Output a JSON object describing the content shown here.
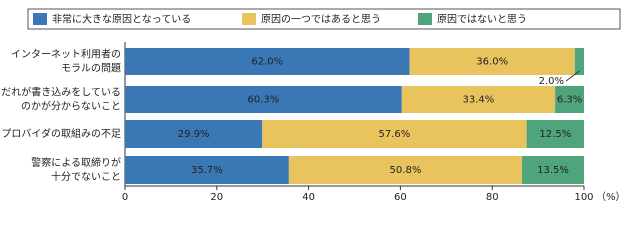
{
  "chart_data": {
    "type": "stacked_bar_horizontal",
    "categories": [
      [
        "インターネット利用者の",
        "モラルの問題"
      ],
      [
        "だれが書き込みをしている",
        "のかが分からないこと"
      ],
      [
        "プロバイダの取組みの不足"
      ],
      [
        "警察による取締りが",
        "十分でないこと"
      ]
    ],
    "series": [
      {
        "name": "非常に大きな原因となっている",
        "color": "#3a78b5",
        "values": [
          62.0,
          60.3,
          29.9,
          35.7
        ],
        "value_labels": [
          "62.0%",
          "60.3%",
          "29.9%",
          "35.7%"
        ]
      },
      {
        "name": "原因の一つではあると思う",
        "color": "#e9c45e",
        "values": [
          36.0,
          33.4,
          57.6,
          50.8
        ],
        "value_labels": [
          "36.0%",
          "33.4%",
          "57.6%",
          "50.8%"
        ]
      },
      {
        "name": "原因ではないと思う",
        "color": "#4ea57c",
        "values": [
          2.0,
          6.3,
          12.5,
          13.5
        ],
        "value_labels": [
          "2.0%",
          "6.3%",
          "12.5%",
          "13.5%"
        ]
      }
    ],
    "xlim": [
      0,
      100
    ],
    "xticks": [
      0,
      20,
      40,
      60,
      80,
      100
    ],
    "x_label": "（%）"
  }
}
